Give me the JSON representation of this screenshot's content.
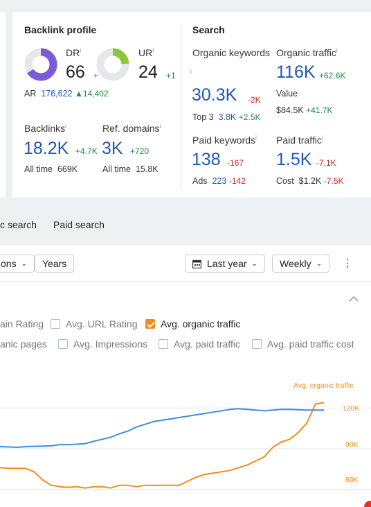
{
  "backlink_profile": {
    "title": "Backlink profile",
    "dr": {
      "label": "DR",
      "value": "66",
      "delta": "+",
      "fill": 0.66
    },
    "ur": {
      "label": "UR",
      "value": "24",
      "delta": "+1",
      "fill": 0.24
    },
    "ar": {
      "label": "AR",
      "value": "176,622",
      "delta": "14,402"
    },
    "backlinks": {
      "label": "Backlinks",
      "value": "18.2K",
      "delta": "+4.7K",
      "all_time_label": "All time",
      "all_time_value": "669K"
    },
    "ref_domains": {
      "label": "Ref. domains",
      "value": "3K",
      "delta": "+720",
      "all_time_label": "All time",
      "all_time_value": "15.8K"
    },
    "info_mark": "i"
  },
  "search": {
    "title": "Search",
    "organic_keywords": {
      "label": "Organic keywords",
      "value": "30.3K",
      "delta": "-2K",
      "top3_label": "Top 3",
      "top3_value": "3.8K",
      "top3_delta": "+2.5K"
    },
    "organic_traffic": {
      "label": "Organic traffic",
      "value": "116K",
      "delta": "+62.6K",
      "value_label": "Value",
      "value_amount": "$84.5K",
      "value_delta": "+41.7K"
    },
    "paid_keywords": {
      "label": "Paid keywords",
      "value": "138",
      "delta": "-167",
      "ads_label": "Ads",
      "ads_value": "223",
      "ads_delta": "-142"
    },
    "paid_traffic": {
      "label": "Paid traffic",
      "value": "1.5K",
      "delta": "-7.1K",
      "cost_label": "Cost",
      "cost_value": "$1.2K",
      "cost_delta": "-7.5K"
    }
  },
  "tabs": [
    "c search",
    "Paid search"
  ],
  "toolbar": {
    "left_dropdown": "ons",
    "years_button": "Years",
    "period": "Last year",
    "granularity": "Weekly"
  },
  "checkboxes": [
    {
      "label": "ain Rating",
      "checked": false
    },
    {
      "label": "Avg. URL Rating",
      "checked": false
    },
    {
      "label": "Avg. organic traffic",
      "checked": true
    },
    {
      "label": "anic pages",
      "checked": false
    },
    {
      "label": "Avg. Impressions",
      "checked": false
    },
    {
      "label": "Avg. paid traffic",
      "checked": false
    },
    {
      "label": "Avg. paid traffic cost",
      "checked": false
    }
  ],
  "colors": {
    "orange": "#f28c18",
    "blue": "#3d8fd9",
    "accent_blue": "#1f57b5"
  },
  "chart_data": {
    "type": "line",
    "series": [
      {
        "name": "Avg. organic traffic",
        "color": "#f28c18",
        "values": [
          77,
          76.5,
          76.5,
          76.5,
          74,
          68,
          64,
          63,
          62.5,
          63,
          62,
          63,
          63,
          62,
          64,
          64,
          63,
          64,
          64,
          64,
          64,
          64,
          67,
          70,
          72,
          73,
          74,
          75,
          77,
          79,
          82,
          85,
          92,
          96,
          98,
          103,
          110,
          124,
          125
        ]
      },
      {
        "color": "#3d8fd9",
        "values": [
          92.5,
          92.3,
          92,
          92.5,
          92.8,
          92.9,
          93.2,
          94,
          94,
          94.3,
          94.8,
          96.5,
          98,
          99.5,
          102,
          104,
          107,
          109,
          111,
          112,
          113,
          114,
          115,
          116,
          117,
          118,
          119,
          120,
          120.5,
          120,
          119.5,
          119,
          119.5,
          120,
          120,
          119.8,
          119.5,
          119.5,
          119.5
        ]
      }
    ],
    "y_ticks": [
      "120K",
      "90K",
      "60K"
    ],
    "y_tick_values": [
      120,
      90,
      60
    ],
    "axis_title": "Avg. organic traffic",
    "ylim": [
      48,
      135
    ]
  }
}
